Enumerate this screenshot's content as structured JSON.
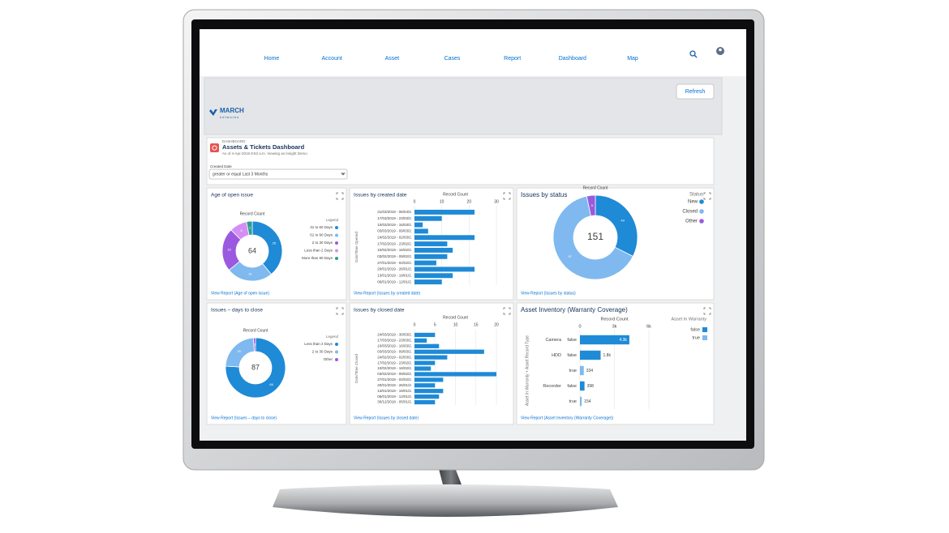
{
  "nav": {
    "logo": "MARCH",
    "logo_sub": "networks",
    "items": [
      "Home",
      "Account",
      "Asset",
      "Cases",
      "Report",
      "Dashboard",
      "Map"
    ],
    "refresh": "Refresh"
  },
  "header": {
    "kicker": "DASHBOARD",
    "title": "Assets & Tickets Dashboard",
    "subtitle": "As of 4-Apr-2019 8:53 a.m. Viewing as Insight Demo"
  },
  "filter": {
    "label": "Created Date",
    "value": "greater or equal Last 3 Months"
  },
  "widgets": [
    {
      "type": "donut",
      "title": "Age of open issue",
      "axis_title": "Record Count",
      "legend_title": "Legend",
      "total": 64,
      "categories": [
        "31 to 60 Days",
        "61 to 90 Days",
        "2 to 30 Days",
        "Less than 2 Days",
        "More than 90 Days"
      ],
      "values": [
        25,
        16,
        15,
        6,
        2
      ],
      "colors": [
        "#1f8ad6",
        "#7fb9ef",
        "#9b59e0",
        "#d58ef5",
        "#2a9d8f"
      ],
      "link": "View Report (Age of open issue)"
    },
    {
      "type": "hbar",
      "title": "Issues by created date",
      "axis_title": "Record Count",
      "y_axis_title": "Date/Time Opened",
      "categories": [
        "31/03/2019 - 06/04/2.",
        "17/03/2019 - 23/03/2.",
        "10/03/2019 - 16/03/2.",
        "03/03/2019 - 09/03/2.",
        "24/02/2019 - 02/03/2.",
        "17/02/2019 - 23/02/2.",
        "10/02/2019 - 16/02/2.",
        "03/02/2019 - 09/02/2.",
        "27/01/2019 - 02/02/2.",
        "20/01/2019 - 26/01/2.",
        "13/01/2019 - 19/01/2.",
        "06/01/2019 - 12/01/2."
      ],
      "values": [
        22,
        10,
        3,
        5,
        22,
        12,
        14,
        12,
        8,
        22,
        14,
        10
      ],
      "color": "#1f8ad6",
      "xlim": [
        0,
        30
      ],
      "xticks": [
        0,
        10,
        20,
        30
      ],
      "link": "View Report (Issues by created date)"
    },
    {
      "type": "donut",
      "title": "Issues by status",
      "axis_title": "Record Count",
      "legend_title": "Status",
      "total": 151,
      "categories": [
        "New",
        "Closed",
        "Other"
      ],
      "values": [
        49,
        97,
        5
      ],
      "colors": [
        "#1f8ad6",
        "#7fb9ef",
        "#9b59e0"
      ],
      "link": "View Report (Issues by status)"
    },
    {
      "type": "donut",
      "title": "Issues – days to close",
      "axis_title": "Record Count",
      "legend_title": "Legend",
      "total": 87,
      "categories": [
        "Less than 2 Days",
        "2 to 30 Days",
        "Other"
      ],
      "values": [
        66,
        20,
        1
      ],
      "colors": [
        "#1f8ad6",
        "#7fb9ef",
        "#9b59e0"
      ],
      "link": "View Report (Issues – days to close)"
    },
    {
      "type": "hbar",
      "title": "Issues by closed date",
      "axis_title": "Record Count",
      "y_axis_title": "Date/Time Closed",
      "categories": [
        "24/03/2019 - 30/03/2.",
        "17/03/2019 - 23/03/2.",
        "10/03/2019 - 16/03/2.",
        "03/03/2019 - 09/03/2.",
        "24/02/2019 - 02/03/2.",
        "17/02/2019 - 23/02/2.",
        "10/02/2019 - 16/02/2.",
        "03/02/2019 - 09/02/2.",
        "27/01/2019 - 02/02/2.",
        "20/01/2019 - 26/01/2.",
        "13/01/2019 - 19/01/2.",
        "06/01/2019 - 12/01/2.",
        "30/12/2018 - 05/01/2."
      ],
      "values": [
        5,
        3,
        6,
        17,
        8,
        5,
        4,
        20,
        7,
        5,
        7,
        6,
        5
      ],
      "color": "#1f8ad6",
      "xlim": [
        0,
        20
      ],
      "xticks": [
        0,
        5,
        10,
        15,
        20
      ],
      "link": "View Report (Issues by closed date)"
    },
    {
      "type": "grouped_hbar",
      "title": "Asset Inventory (Warranty Coverage)",
      "axis_title": "Record Count",
      "y_axis_title": "Asset In Warranty + Asset Record Type",
      "legend_title": "Asset In Warranty",
      "groups": [
        "Camera",
        "HDD",
        null,
        "Recorder",
        null
      ],
      "warranty": [
        "false",
        "false",
        "true",
        "false",
        "true"
      ],
      "values": [
        4300,
        1800,
        334,
        398,
        154
      ],
      "value_labels": [
        "4.3k",
        "1.8k",
        "334",
        "398",
        "154"
      ],
      "series": [
        {
          "name": "false",
          "color": "#1f8ad6"
        },
        {
          "name": "true",
          "color": "#7fb9ef"
        }
      ],
      "xlim": [
        0,
        6000
      ],
      "xticks": [
        0,
        {
          "value": 3000,
          "label": "3k"
        },
        {
          "value": 6000,
          "label": "6k"
        }
      ],
      "link": "View Report (Asset Inventory (Warranty Coverage))"
    }
  ]
}
